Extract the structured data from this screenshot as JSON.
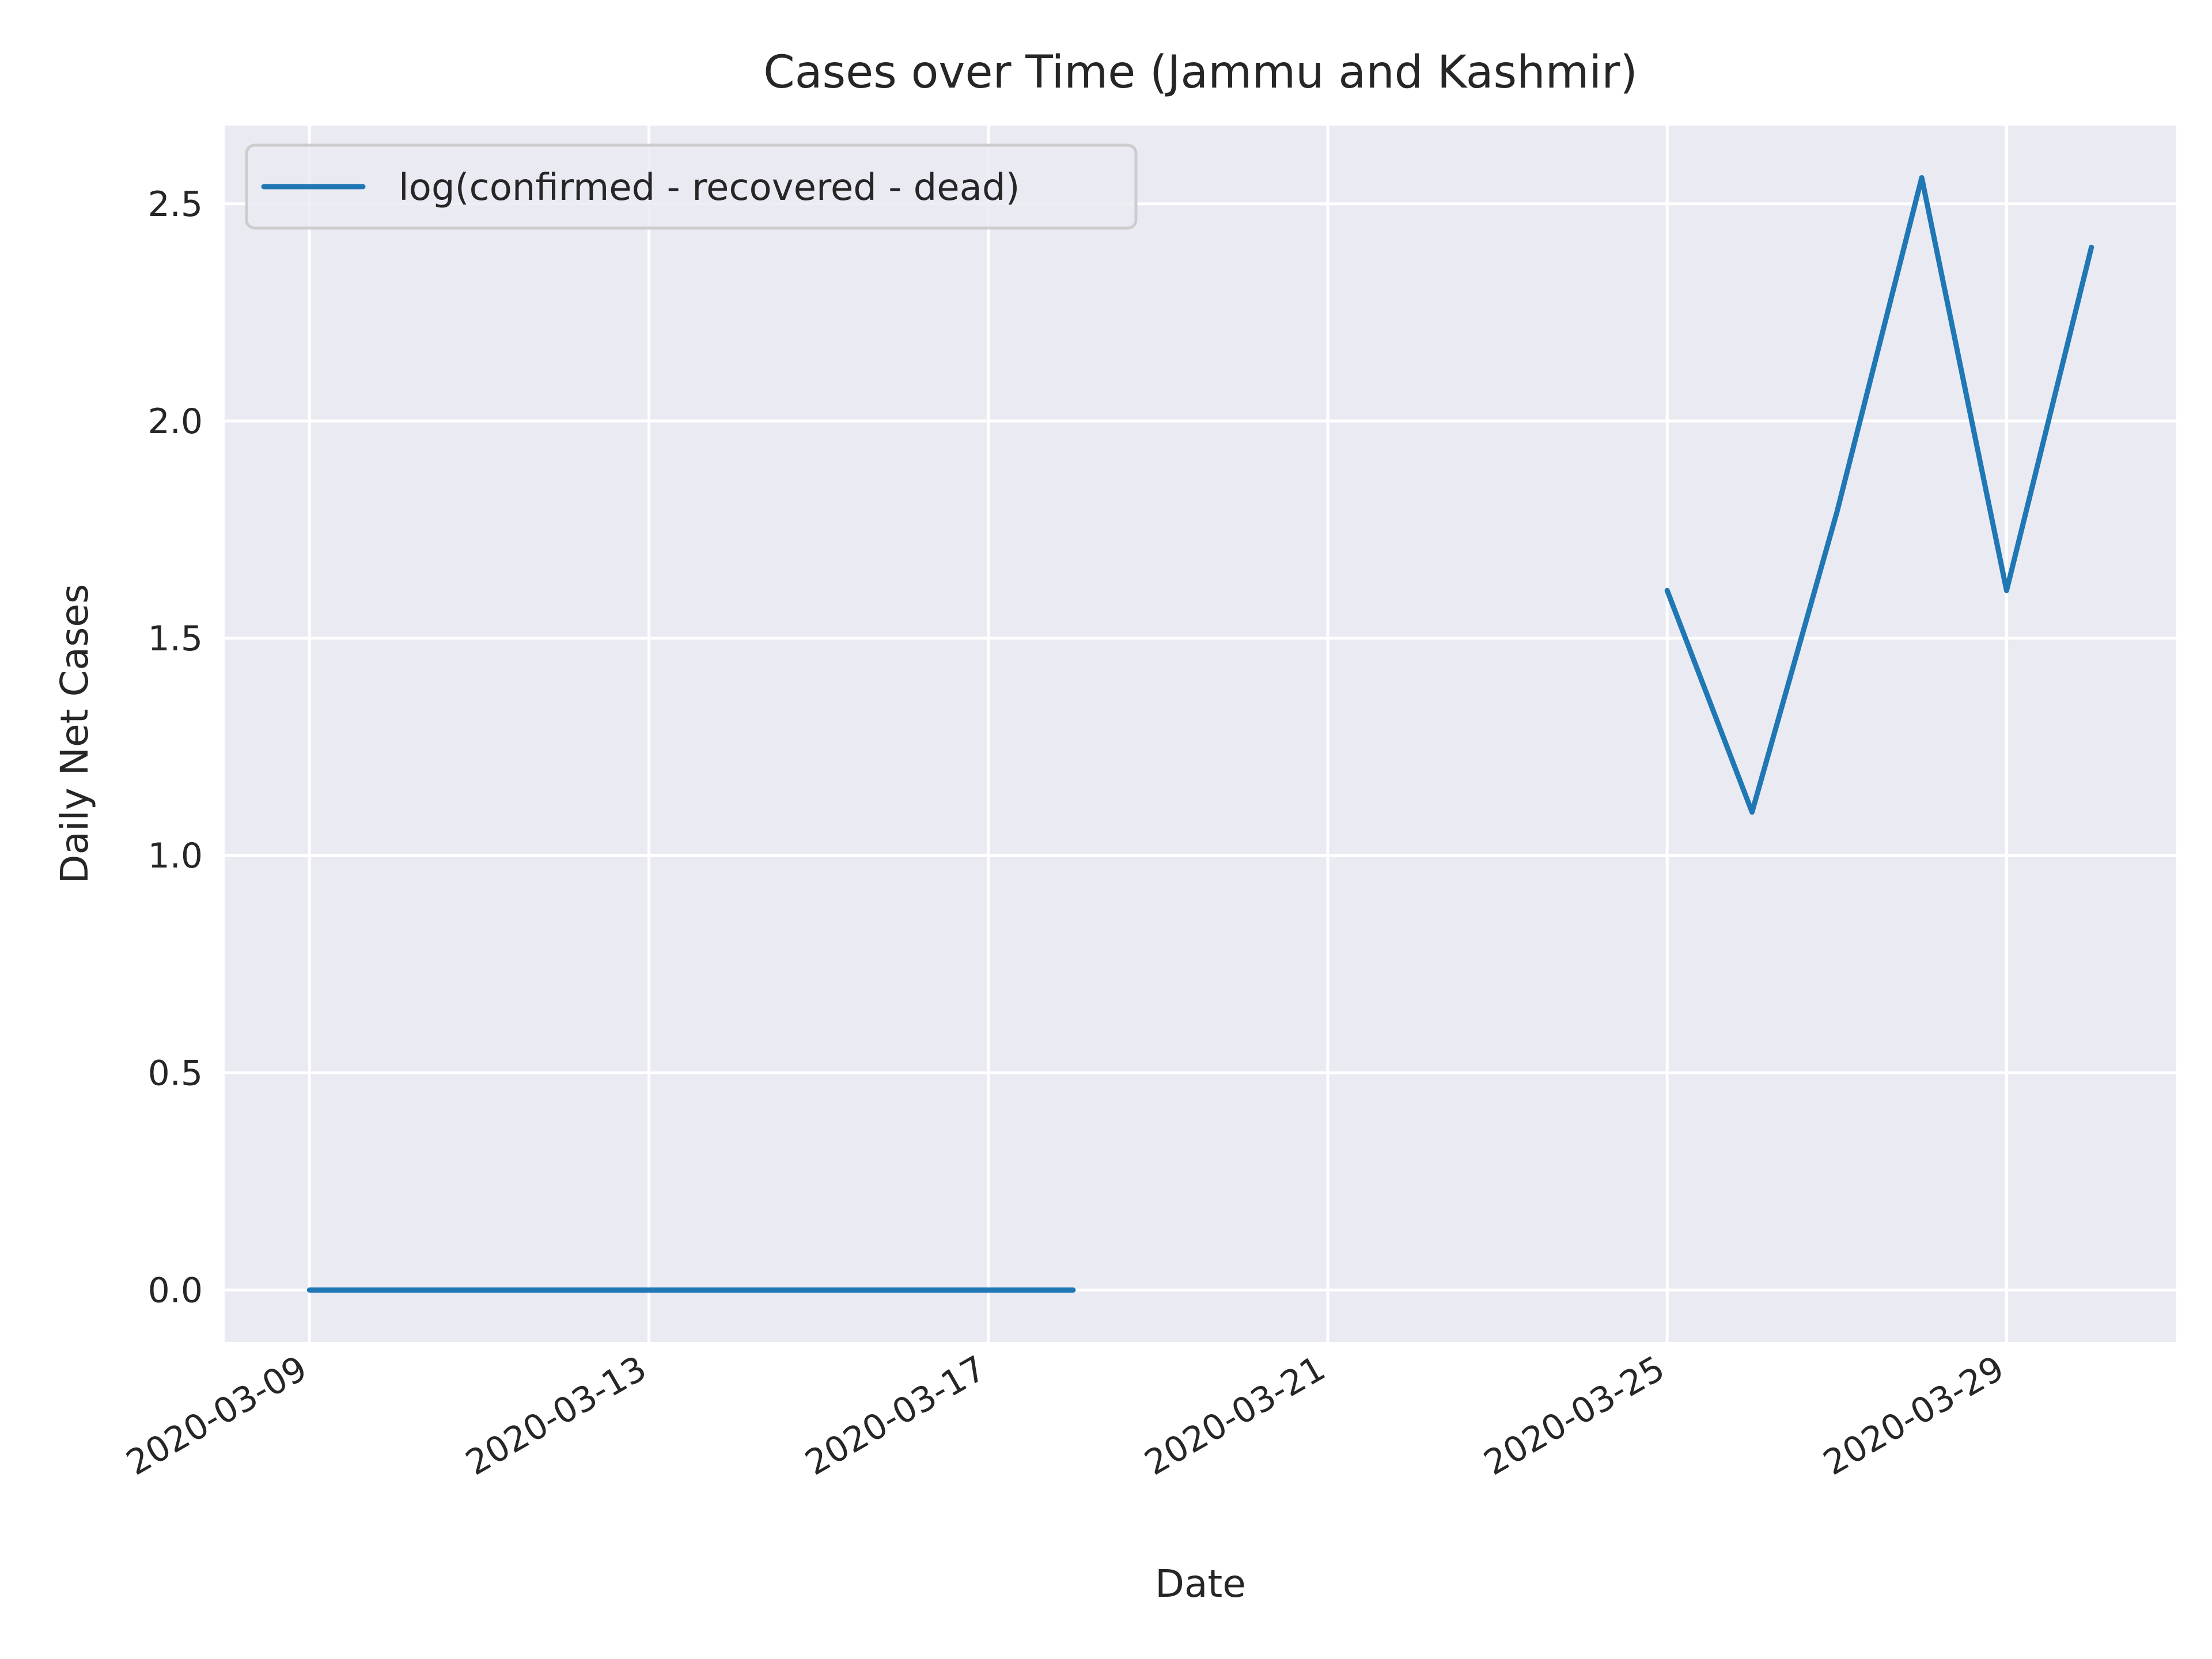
{
  "chart_data": {
    "type": "line",
    "title": "Cases over Time (Jammu and Kashmir)",
    "xlabel": "Date",
    "ylabel": "Daily Net Cases",
    "ylim": [
      -0.12,
      2.68
    ],
    "xlim": [
      "2020-03-08",
      "2020-03-31"
    ],
    "x_ticks": [
      "2020-03-09",
      "2020-03-13",
      "2020-03-17",
      "2020-03-21",
      "2020-03-25",
      "2020-03-29"
    ],
    "y_ticks": [
      0.0,
      0.5,
      1.0,
      1.5,
      2.0,
      2.5
    ],
    "y_tick_labels": [
      "0.0",
      "0.5",
      "1.0",
      "1.5",
      "2.0",
      "2.5"
    ],
    "grid": true,
    "legend_position": "top-left",
    "series": [
      {
        "name": "log(confirmed - recovered - dead)",
        "color": "#1f77b4",
        "points": [
          {
            "x": "2020-03-09",
            "y": 0.0
          },
          {
            "x": "2020-03-10",
            "y": 0.0
          },
          {
            "x": "2020-03-11",
            "y": 0.0
          },
          {
            "x": "2020-03-12",
            "y": 0.0
          },
          {
            "x": "2020-03-13",
            "y": 0.0
          },
          {
            "x": "2020-03-14",
            "y": 0.0
          },
          {
            "x": "2020-03-15",
            "y": 0.0
          },
          {
            "x": "2020-03-16",
            "y": 0.0
          },
          {
            "x": "2020-03-17",
            "y": 0.0
          },
          {
            "x": "2020-03-18",
            "y": 0.0
          },
          {
            "x": "2020-03-19",
            "y": null
          },
          {
            "x": "2020-03-20",
            "y": null
          },
          {
            "x": "2020-03-21",
            "y": null
          },
          {
            "x": "2020-03-22",
            "y": null
          },
          {
            "x": "2020-03-23",
            "y": null
          },
          {
            "x": "2020-03-24",
            "y": null
          },
          {
            "x": "2020-03-25",
            "y": 1.61
          },
          {
            "x": "2020-03-26",
            "y": 1.1
          },
          {
            "x": "2020-03-27",
            "y": 1.79
          },
          {
            "x": "2020-03-28",
            "y": 2.56
          },
          {
            "x": "2020-03-29",
            "y": 1.61
          },
          {
            "x": "2020-03-30",
            "y": 2.4
          }
        ]
      }
    ],
    "colors": {
      "plot_background": "#eaeaf2",
      "grid": "#ffffff",
      "text": "#262626"
    }
  }
}
